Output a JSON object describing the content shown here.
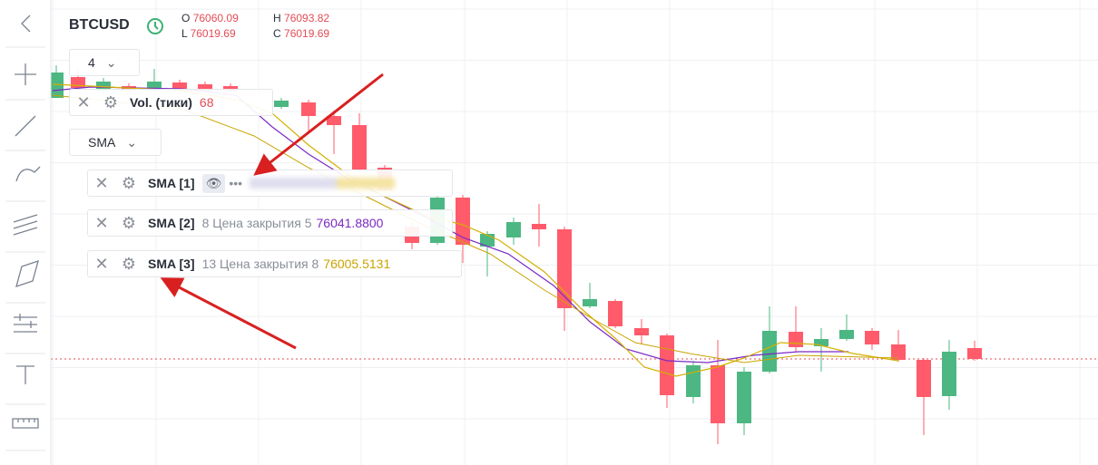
{
  "header": {
    "symbol": "BTCUSD",
    "ohlc": [
      {
        "label": "O",
        "value": "76060.09"
      },
      {
        "label": "H",
        "value": "76093.82"
      },
      {
        "label": "L",
        "value": "76019.69"
      },
      {
        "label": "C",
        "value": "76019.69"
      }
    ]
  },
  "interval": "4",
  "volume": {
    "name": "Vol. (тики)",
    "value": "68"
  },
  "indicator_select": "SMA",
  "indicators": [
    {
      "name": "SMA [1]",
      "params": "•••",
      "value": ""
    },
    {
      "name": "SMA [2]",
      "params": "8 Цена закрытия 5",
      "value": "76041.8800"
    },
    {
      "name": "SMA [3]",
      "params": "13 Цена закрытия 8",
      "value": "76005.5131"
    }
  ]
}
